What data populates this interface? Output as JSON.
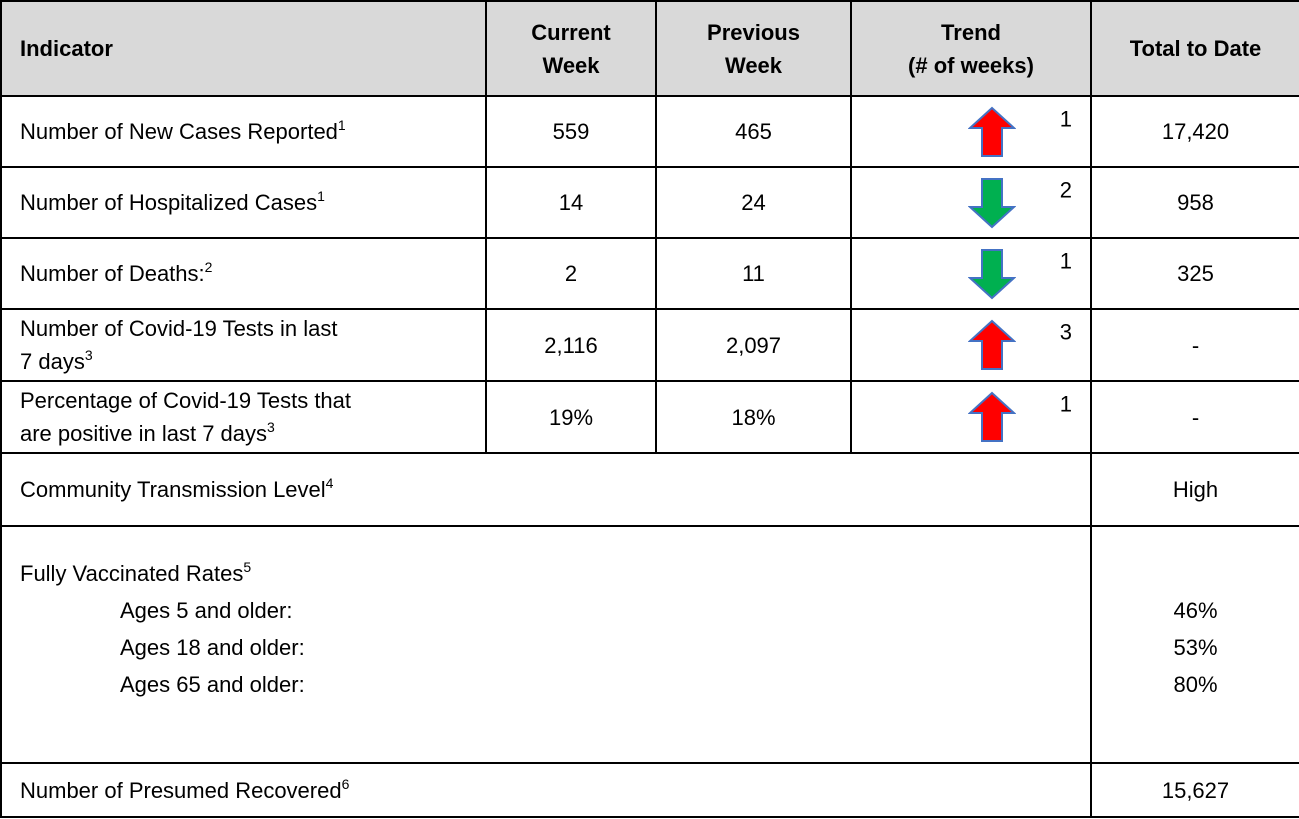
{
  "table": {
    "columns": [
      [
        "Indicator"
      ],
      [
        "Current",
        "Week"
      ],
      [
        "Previous",
        "Week"
      ],
      [
        "Trend",
        "(# of weeks)"
      ],
      [
        "Total to Date"
      ]
    ],
    "rows": [
      {
        "label": [
          "Number of New Cases Reported"
        ],
        "note": "1",
        "current": "559",
        "previous": "465",
        "trend": {
          "direction": "up",
          "weeks": "1"
        },
        "total": "17,420"
      },
      {
        "label": [
          "Number of Hospitalized Cases"
        ],
        "note": "1",
        "current": "14",
        "previous": "24",
        "trend": {
          "direction": "down",
          "weeks": "2"
        },
        "total": "958"
      },
      {
        "label": [
          "Number of Deaths:"
        ],
        "note": "2",
        "current": "2",
        "previous": "11",
        "trend": {
          "direction": "down",
          "weeks": "1"
        },
        "total": "325"
      },
      {
        "label": [
          "Number of Covid-19 Tests in last",
          "7 days"
        ],
        "note": "3",
        "current": "2,116",
        "previous": "2,097",
        "trend": {
          "direction": "up",
          "weeks": "3"
        },
        "total": "-"
      },
      {
        "label": [
          "Percentage of Covid-19 Tests that",
          "are positive in last 7 days"
        ],
        "note": "3",
        "current": "19%",
        "previous": "18%",
        "trend": {
          "direction": "up",
          "weeks": "1"
        },
        "total": "-"
      }
    ],
    "transmission": {
      "label": "Community Transmission Level",
      "note": "4",
      "total": "High"
    },
    "vaccination": {
      "label": "Fully Vaccinated Rates",
      "note": "5",
      "groups": [
        {
          "label": "Ages 5 and older:",
          "total": "46%"
        },
        {
          "label": "Ages 18 and older:",
          "total": "53%"
        },
        {
          "label": "Ages 65 and older:",
          "total": "80%"
        }
      ]
    },
    "recovered": {
      "label": "Number of Presumed Recovered",
      "note": "6",
      "total": "15,627"
    }
  }
}
